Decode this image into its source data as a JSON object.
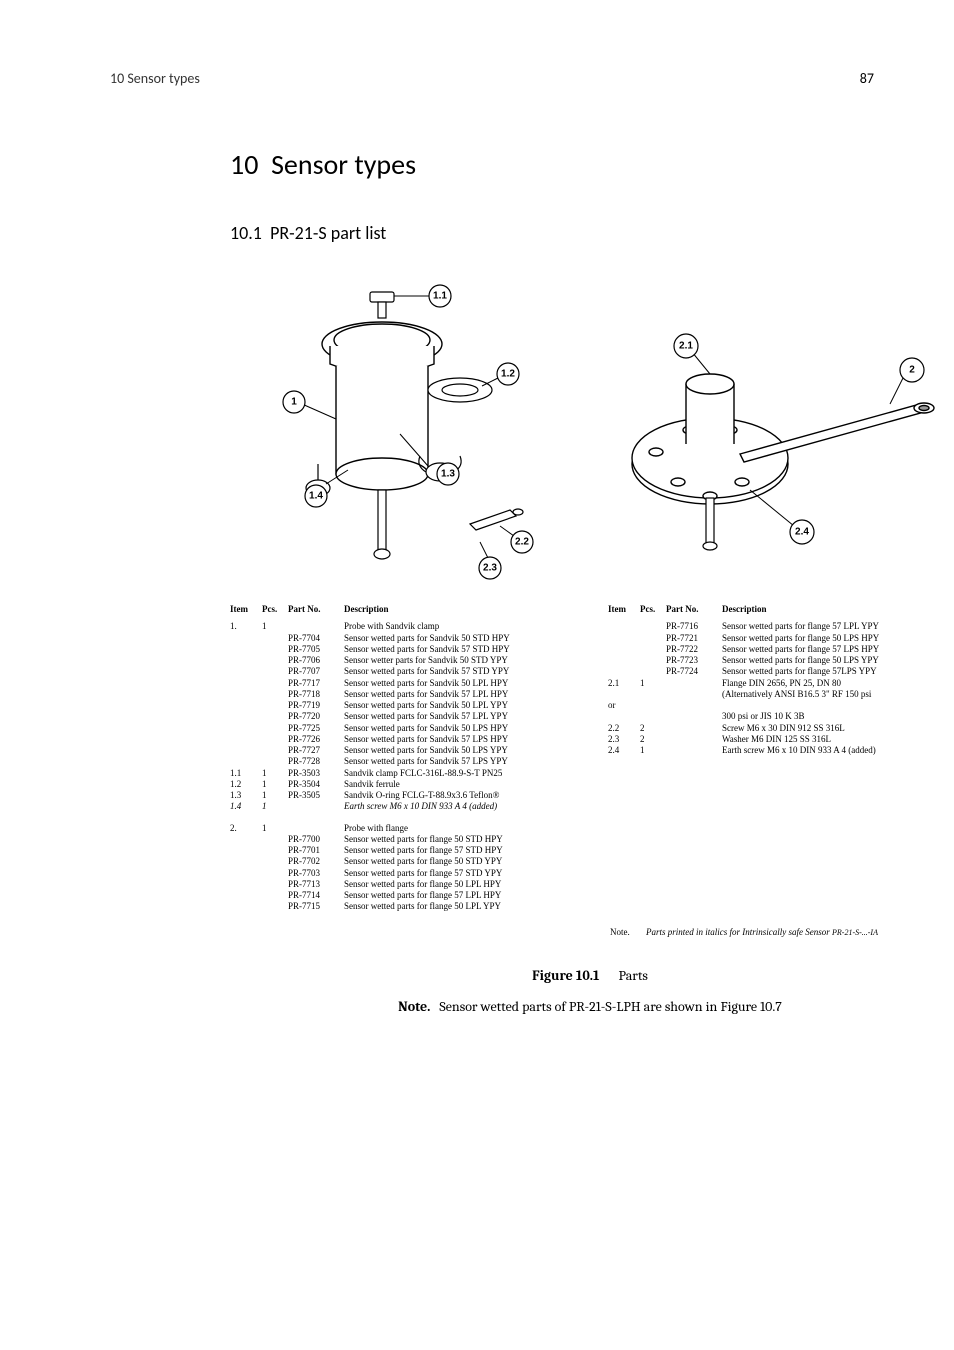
{
  "header": {
    "left": "10 Sensor types",
    "page": "87"
  },
  "chapter": {
    "num": "10",
    "title": "Sensor types"
  },
  "section": {
    "num": "10.1",
    "title": "PR-21-S part list"
  },
  "callouts_left": [
    "1",
    "1.1",
    "1.2",
    "1.3",
    "1.4",
    "2.2",
    "2.3"
  ],
  "callouts_right": [
    "2",
    "2.1",
    "2.4"
  ],
  "table_headers": {
    "item": "Item",
    "pcs": "Pcs.",
    "part": "Part No.",
    "desc": "Description"
  },
  "left_rows": [
    {
      "item": "1.",
      "pcs": "1",
      "part": "",
      "desc": "Probe with Sandvik clamp"
    },
    {
      "item": "",
      "pcs": "",
      "part": "PR-7704",
      "desc": "Sensor wetted parts for Sandvik 50 STD HPY"
    },
    {
      "item": "",
      "pcs": "",
      "part": "PR-7705",
      "desc": "Sensor wetted parts for Sandvik 57 STD HPY"
    },
    {
      "item": "",
      "pcs": "",
      "part": "PR-7706",
      "desc": "Sensor wetter parts for Sandvik 50 STD YPY"
    },
    {
      "item": "",
      "pcs": "",
      "part": "PR-7707",
      "desc": "Sensor wetted parts for Sandvik 57 STD YPY"
    },
    {
      "item": "",
      "pcs": "",
      "part": "PR-7717",
      "desc": "Sensor wetted parts for Sandvik 50 LPL HPY"
    },
    {
      "item": "",
      "pcs": "",
      "part": "PR-7718",
      "desc": "Sensor wetted parts for Sandvik 57 LPL HPY"
    },
    {
      "item": "",
      "pcs": "",
      "part": "PR-7719",
      "desc": "Sensor wetted parts for Sandvik 50 LPL YPY"
    },
    {
      "item": "",
      "pcs": "",
      "part": "PR-7720",
      "desc": "Sensor wetted parts for Sandvik 57 LPL YPY"
    },
    {
      "item": "",
      "pcs": "",
      "part": "PR-7725",
      "desc": "Sensor wetted parts for Sandvik 50 LPS HPY"
    },
    {
      "item": "",
      "pcs": "",
      "part": "PR-7726",
      "desc": "Sensor wetted parts for Sandvik 57 LPS HPY"
    },
    {
      "item": "",
      "pcs": "",
      "part": "PR-7727",
      "desc": "Sensor wetted parts for Sandvik 50 LPS YPY"
    },
    {
      "item": "",
      "pcs": "",
      "part": "PR-7728",
      "desc": "Sensor wetted parts for Sandvik 57 LPS YPY"
    },
    {
      "item": "1.1",
      "pcs": "1",
      "part": "PR-3503",
      "desc": "Sandvik clamp FCLC-316L-88.9-S-T PN25"
    },
    {
      "item": "1.2",
      "pcs": "1",
      "part": "PR-3504",
      "desc": "Sandvik ferrule"
    },
    {
      "item": "1.3",
      "pcs": "1",
      "part": "PR-3505",
      "desc": "Sandvik O-ring FCLG-T-88.9x3.6 Teflon®"
    },
    {
      "item": "1.4",
      "pcs": "1",
      "part": "",
      "desc": "Earth screw M6 x 10 DIN 933 A 4 (added)",
      "italic": true
    },
    {
      "spacer": true
    },
    {
      "item": "2.",
      "pcs": "1",
      "part": "",
      "desc": "Probe with flange"
    },
    {
      "item": "",
      "pcs": "",
      "part": "PR-7700",
      "desc": "Sensor wetted parts for flange 50 STD HPY"
    },
    {
      "item": "",
      "pcs": "",
      "part": "PR-7701",
      "desc": "Sensor wetted parts for flange 57 STD HPY"
    },
    {
      "item": "",
      "pcs": "",
      "part": "PR-7702",
      "desc": "Sensor wetted parts for flange 50 STD YPY"
    },
    {
      "item": "",
      "pcs": "",
      "part": "PR-7703",
      "desc": "Sensor wetted parts for flange 57 STD YPY"
    },
    {
      "item": "",
      "pcs": "",
      "part": "PR-7713",
      "desc": "Sensor wetted parts for flange 50 LPL HPY"
    },
    {
      "item": "",
      "pcs": "",
      "part": "PR-7714",
      "desc": "Sensor wetted parts for flange 57 LPL HPY"
    },
    {
      "item": "",
      "pcs": "",
      "part": "PR-7715",
      "desc": "Sensor wetted parts for flange 50 LPL YPY"
    }
  ],
  "right_rows": [
    {
      "item": "",
      "pcs": "",
      "part": "PR-7716",
      "desc": "Sensor wetted parts for flange 57 LPL YPY"
    },
    {
      "item": "",
      "pcs": "",
      "part": "PR-7721",
      "desc": "Sensor wetted parts for flange 50 LPS HPY"
    },
    {
      "item": "",
      "pcs": "",
      "part": "PR-7722",
      "desc": "Sensor wetted parts for flange 57 LPS HPY"
    },
    {
      "item": "",
      "pcs": "",
      "part": "PR-7723",
      "desc": "Sensor wetted parts for flange 50 LPS YPY"
    },
    {
      "item": "",
      "pcs": "",
      "part": "PR-7724",
      "desc": "Sensor wetted parts for flange 57LPS YPY"
    },
    {
      "item": "2.1",
      "pcs": "1",
      "part": "",
      "desc": "Flange DIN 2656, PN 25, DN 80"
    },
    {
      "item": "",
      "pcs": "",
      "part": "",
      "desc": "(Alternatively ANSI B16.5 3\" RF 150 psi"
    },
    {
      "item": "or",
      "pcs": "",
      "part": "",
      "desc": ""
    },
    {
      "item": "",
      "pcs": "",
      "part": "",
      "desc": "300 psi or JIS 10 K 3B"
    },
    {
      "item": "2.2",
      "pcs": "2",
      "part": "",
      "desc": "Screw M6 x 30 DIN 912 SS 316L"
    },
    {
      "item": "2.3",
      "pcs": "2",
      "part": "",
      "desc": "Washer M6 DIN 125 SS 316L"
    },
    {
      "item": "2.4",
      "pcs": "1",
      "part": "",
      "desc": "Earth screw M6 x 10 DIN 933 A 4 (added)"
    }
  ],
  "footnote": {
    "label": "Note.",
    "text": "Parts printed in italics for Intrinsically safe Sensor ",
    "tail": "PR-21-S-...-IA"
  },
  "caption": {
    "label": "Figure 10.1",
    "text": "Parts"
  },
  "note": {
    "label": "Note.",
    "text": "Sensor wetted parts of PR-21-S-LPH are shown in Figure 10.7"
  }
}
